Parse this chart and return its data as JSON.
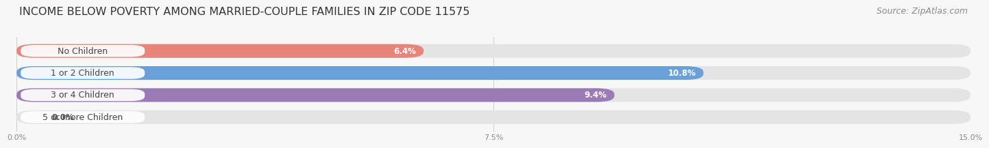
{
  "title": "INCOME BELOW POVERTY AMONG MARRIED-COUPLE FAMILIES IN ZIP CODE 11575",
  "source": "Source: ZipAtlas.com",
  "categories": [
    "No Children",
    "1 or 2 Children",
    "3 or 4 Children",
    "5 or more Children"
  ],
  "values": [
    6.4,
    10.8,
    9.4,
    0.0
  ],
  "bar_colors": [
    "#e8857a",
    "#6a9fd8",
    "#9b7bb5",
    "#5ecece"
  ],
  "xlim": [
    0,
    15.0
  ],
  "xticks": [
    0.0,
    7.5,
    15.0
  ],
  "xtick_labels": [
    "0.0%",
    "7.5%",
    "15.0%"
  ],
  "bar_height": 0.62,
  "background_color": "#f7f7f7",
  "track_color": "#e4e4e4",
  "title_fontsize": 11.5,
  "source_fontsize": 9,
  "label_fontsize": 8.5,
  "category_fontsize": 9,
  "value_label_fontsize": 8.5
}
